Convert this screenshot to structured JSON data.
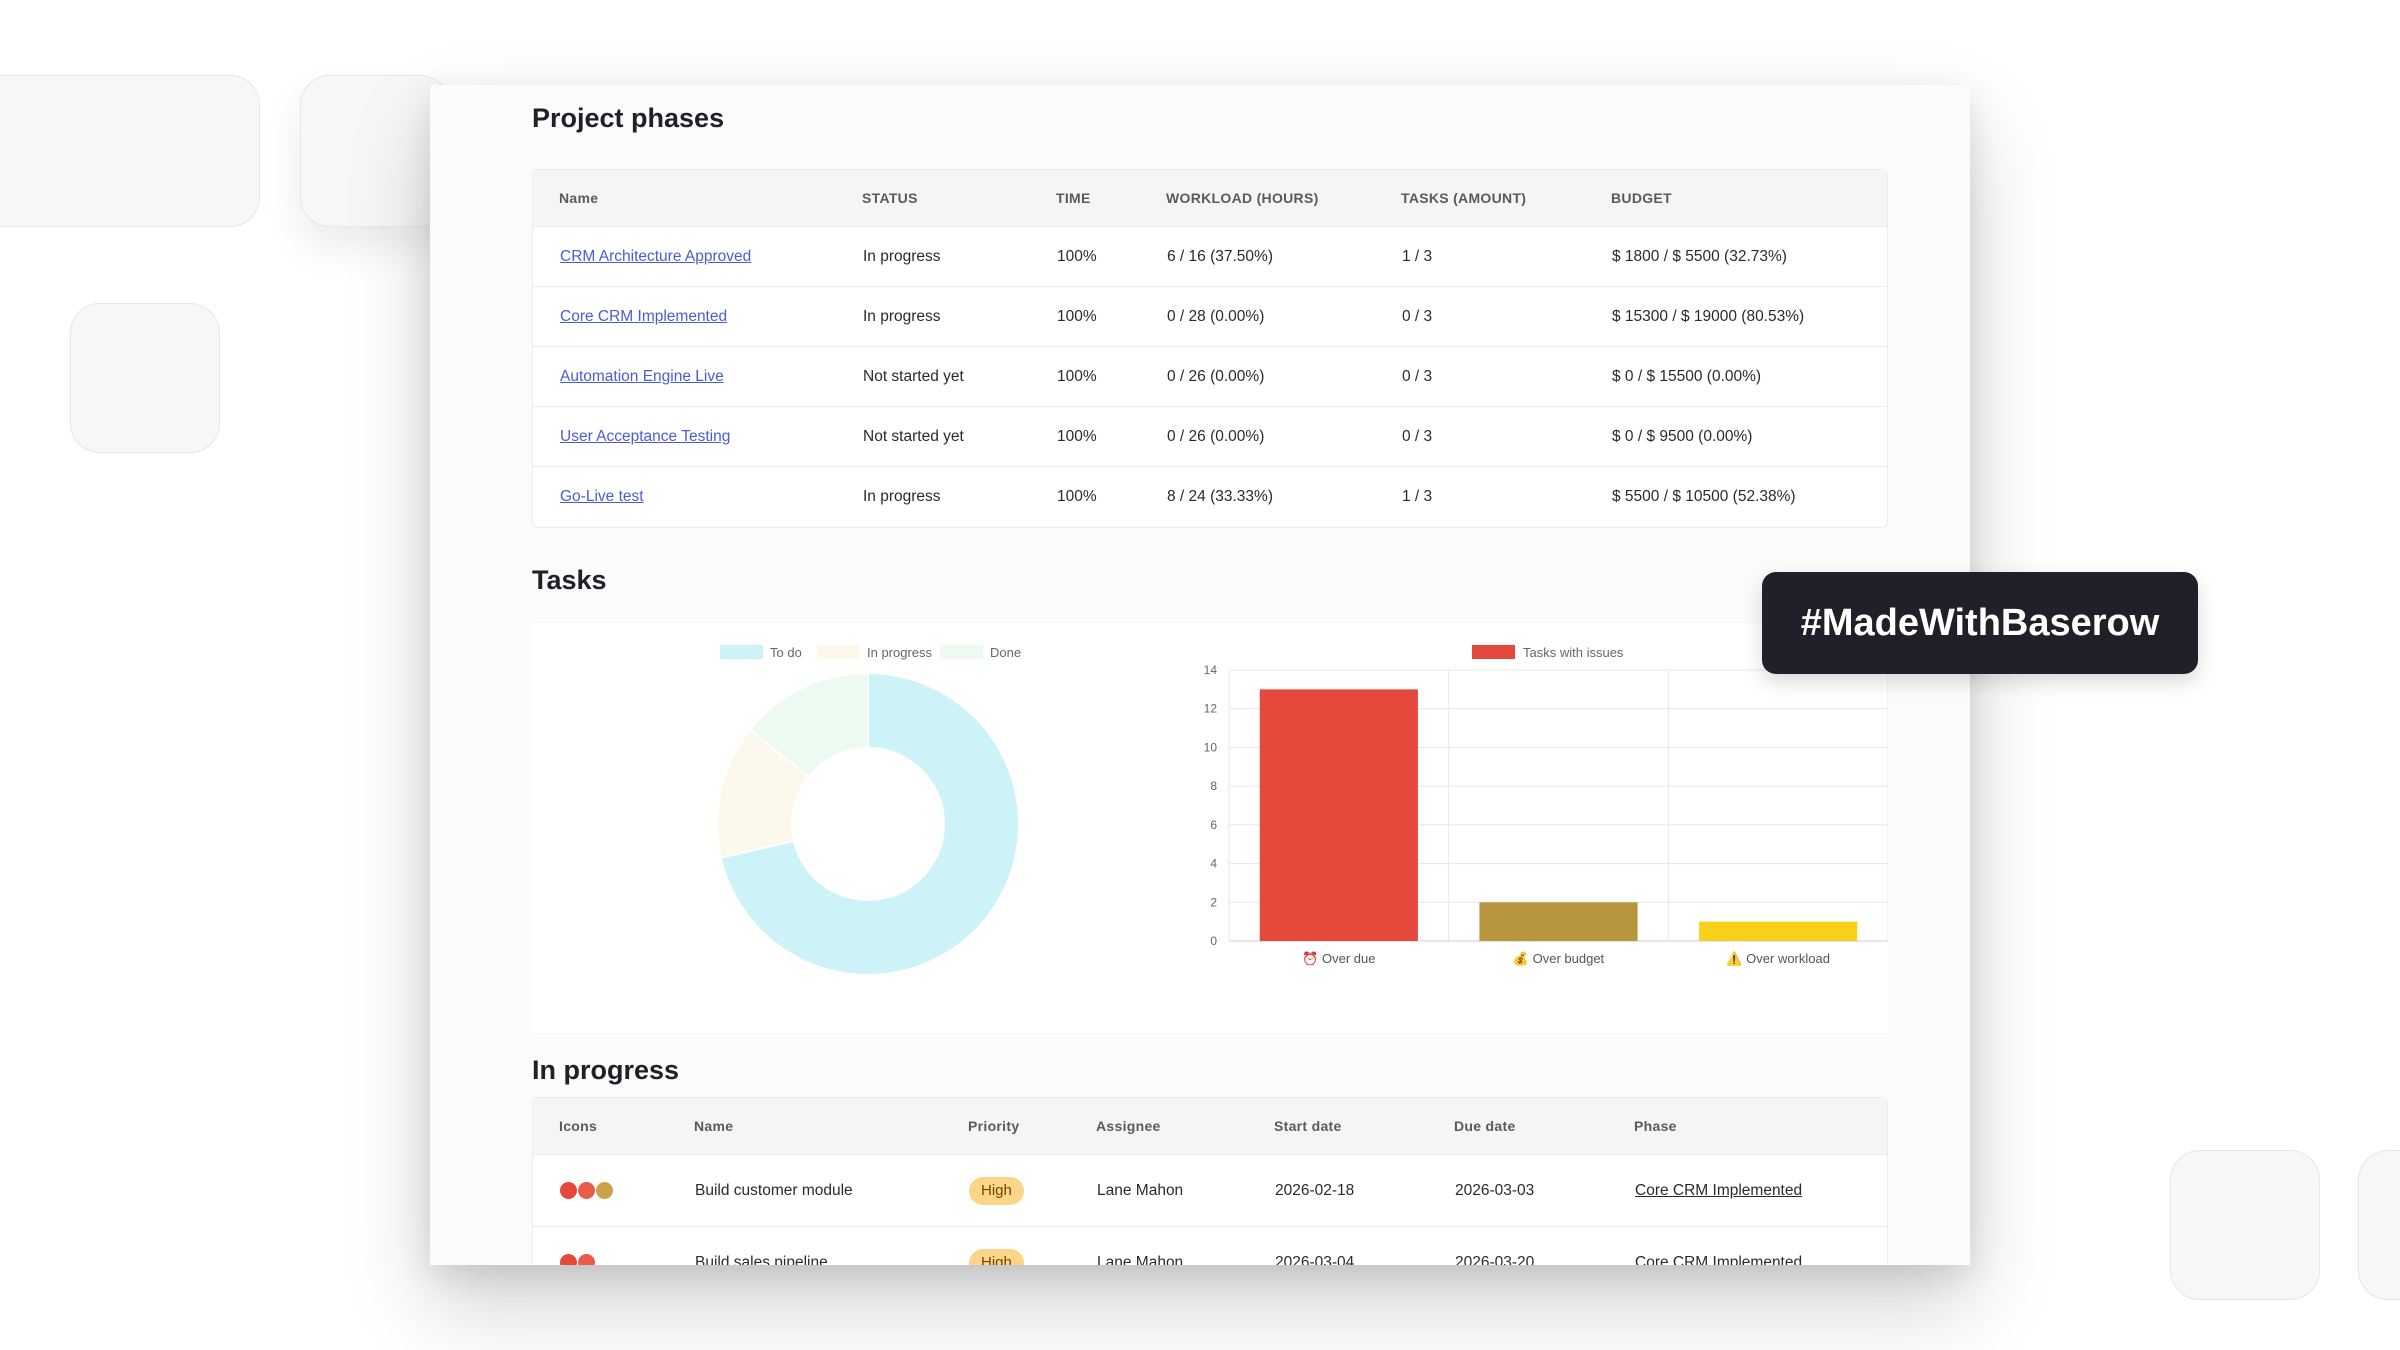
{
  "badge": {
    "text": "#MadeWithBaserow"
  },
  "phases": {
    "title": "Project phases",
    "columns": [
      "Name",
      "STATUS",
      "TIME",
      "WORKLOAD (HOURS)",
      "TASKS (AMOUNT)",
      "BUDGET"
    ],
    "rows": [
      {
        "name": "CRM Architecture Approved",
        "status": "In progress",
        "time": "100%",
        "workload": "6 / 16 (37.50%)",
        "tasks": "1 / 3",
        "budget": "$ 1800 / $ 5500 (32.73%)"
      },
      {
        "name": "Core CRM Implemented",
        "status": "In progress",
        "time": "100%",
        "workload": "0 / 28 (0.00%)",
        "tasks": "0 / 3",
        "budget": "$ 15300 / $ 19000 (80.53%)"
      },
      {
        "name": "Automation Engine Live",
        "status": "Not started yet",
        "time": "100%",
        "workload": "0 / 26 (0.00%)",
        "tasks": "0 / 3",
        "budget": "$ 0 / $ 15500 (0.00%)"
      },
      {
        "name": "User Acceptance Testing",
        "status": "Not started yet",
        "time": "100%",
        "workload": "0 / 26 (0.00%)",
        "tasks": "0 / 3",
        "budget": "$ 0 / $ 9500 (0.00%)"
      },
      {
        "name": "Go-Live test",
        "status": "In progress",
        "time": "100%",
        "workload": "8 / 24 (33.33%)",
        "tasks": "1 / 3",
        "budget": "$ 5500 / $ 10500 (52.38%)"
      }
    ]
  },
  "tasks": {
    "title": "Tasks",
    "donut": {
      "legend": [
        "To do",
        "In progress",
        "Done"
      ],
      "values": [
        6.5,
        1.3,
        1.3
      ],
      "colors": [
        "#cdf3f9",
        "#fdf8ec",
        "#edfaf1"
      ]
    },
    "bars": {
      "legend": "Tasks with issues",
      "categories": [
        "⏰ Over due",
        "💰 Over budget",
        "⚠️ Over workload"
      ],
      "values": [
        13,
        2,
        1
      ],
      "colors": [
        "#e5493b",
        "#b8963f",
        "#f9d11b"
      ],
      "ylim": [
        0,
        14
      ],
      "ticks": [
        "0",
        "2",
        "4",
        "6",
        "8",
        "10",
        "12",
        "14"
      ]
    }
  },
  "chart_data": [
    {
      "type": "pie",
      "categories": [
        "To do",
        "In progress",
        "Done"
      ],
      "values": [
        6.5,
        1.3,
        1.3
      ]
    },
    {
      "type": "bar",
      "categories": [
        "⏰ Over due",
        "💰 Over budget",
        "⚠️ Over workload"
      ],
      "series": [
        {
          "name": "Tasks with issues",
          "values": [
            13,
            2,
            1
          ]
        }
      ],
      "ylim": [
        0,
        14
      ]
    }
  ],
  "in_progress": {
    "title": "In progress",
    "columns": [
      "Icons",
      "Name",
      "Priority",
      "Assignee",
      "Start date",
      "Due date",
      "Phase"
    ],
    "rows": [
      {
        "icons": [
          "no-entry-icon",
          "alarm-clock-icon",
          "money-bag-icon"
        ],
        "name": "Build customer module",
        "priority": "High",
        "assignee": "Lane Mahon",
        "start": "2026-02-18",
        "due": "2026-03-03",
        "phase": "Core CRM Implemented"
      },
      {
        "icons": [
          "no-entry-icon",
          "alarm-clock-icon"
        ],
        "name": "Build sales pipeline",
        "priority": "High",
        "assignee": "Lane Mahon",
        "start": "2026-03-04",
        "due": "2026-03-20",
        "phase": "Core CRM Implemented"
      }
    ]
  }
}
